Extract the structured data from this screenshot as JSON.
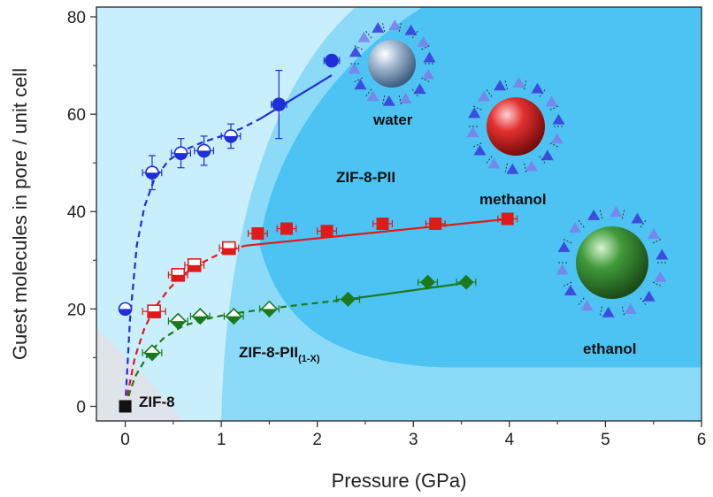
{
  "chart_data": {
    "type": "scatter",
    "title": "",
    "xlabel": "Pressure (GPa)",
    "ylabel": "Guest molecules in pore / unit cell",
    "xlim": [
      -0.3,
      6
    ],
    "ylim": [
      -3,
      82
    ],
    "x_ticks": [
      0,
      1,
      2,
      3,
      4,
      5,
      6
    ],
    "y_ticks": [
      0,
      20,
      40,
      60,
      80
    ],
    "x_tick_labels": [
      "0",
      "1",
      "2",
      "3",
      "4",
      "5",
      "6"
    ],
    "y_tick_labels": [
      "0",
      "20",
      "40",
      "60",
      "80"
    ],
    "grid": false,
    "regions": {
      "zif8": "ZIF-8",
      "pii_1x": "ZIF-8-PII",
      "pii_1x_sub": "(1-X)",
      "pii": "ZIF-8-PII"
    },
    "molecules": {
      "water": "water",
      "methanol": "methanol",
      "ethanol": "ethanol"
    },
    "colors": {
      "water": "#1f2fd8",
      "methanol": "#e01a1a",
      "ethanol": "#1b7a1b",
      "zif8": "#111111",
      "bg_light": "#c9eefc",
      "bg_mid": "#8bdaf8",
      "bg_dark": "#4cc3f2",
      "bg_corner": "#dfe3ea"
    },
    "series": [
      {
        "name": "water",
        "marker": "circle",
        "open_points": {
          "x": [
            0.0,
            0.28,
            0.58,
            0.82,
            1.1
          ],
          "y": [
            20,
            48,
            52,
            52.5,
            55.5
          ]
        },
        "filled_points": {
          "x": [
            1.6,
            2.15
          ],
          "y": [
            62,
            71
          ]
        },
        "error_y": [
          0,
          3.5,
          3,
          3,
          2.5,
          7,
          0
        ],
        "error_x": [
          0,
          0.1,
          0.1,
          0.1,
          0.1,
          0.08,
          0.08
        ],
        "fit_dashed": {
          "x": [
            0.0,
            0.05,
            0.12,
            0.2,
            0.3,
            0.45,
            0.6,
            0.8,
            1.0,
            1.2,
            1.4
          ],
          "y": [
            0,
            18,
            33,
            41,
            46.5,
            50.5,
            52.5,
            54.2,
            55.5,
            57,
            59
          ]
        },
        "fit_solid": {
          "x": [
            1.4,
            2.15
          ],
          "y": [
            59,
            68
          ]
        }
      },
      {
        "name": "methanol",
        "marker": "square",
        "open_points": {
          "x": [
            0.3,
            0.55,
            0.72,
            1.08
          ],
          "y": [
            19.5,
            27,
            29,
            32.5
          ]
        },
        "filled_points": {
          "x": [
            1.38,
            1.68,
            2.1,
            2.68,
            3.23,
            3.98
          ],
          "y": [
            35.5,
            36.5,
            36,
            37.5,
            37.5,
            38.5
          ]
        },
        "error_y": [
          0,
          0,
          0,
          0,
          0,
          0,
          0,
          0,
          0,
          0
        ],
        "error_x": [
          0.12,
          0.1,
          0.1,
          0.1,
          0.1,
          0.1,
          0.1,
          0.1,
          0.1,
          0.1
        ],
        "fit_dashed": {
          "x": [
            0.0,
            0.1,
            0.2,
            0.3,
            0.45,
            0.6,
            0.8,
            1.0,
            1.25
          ],
          "y": [
            0,
            10,
            16,
            20,
            24,
            27,
            29.5,
            31.5,
            33
          ]
        },
        "fit_solid": {
          "x": [
            1.25,
            4.0
          ],
          "y": [
            33,
            38.5
          ]
        }
      },
      {
        "name": "ethanol",
        "marker": "diamond",
        "open_points": {
          "x": [
            0.28,
            0.55,
            0.78,
            1.13,
            1.5
          ],
          "y": [
            11,
            17.5,
            18.5,
            18.5,
            20
          ]
        },
        "filled_points": {
          "x": [
            2.32,
            3.15,
            3.55
          ],
          "y": [
            22,
            25.5,
            25.5
          ]
        },
        "error_y": [
          0,
          0,
          0,
          0,
          0,
          0,
          0,
          0
        ],
        "error_x": [
          0.1,
          0.1,
          0.1,
          0.1,
          0.1,
          0.12,
          0.1,
          0.1
        ],
        "fit_dashed": {
          "x": [
            0.0,
            0.1,
            0.25,
            0.4,
            0.6,
            0.85,
            1.1,
            1.4,
            1.8,
            2.25
          ],
          "y": [
            0,
            6,
            11,
            14,
            16.5,
            18,
            19,
            19.8,
            20.8,
            21.8
          ]
        },
        "fit_solid": {
          "x": [
            2.25,
            3.6
          ],
          "y": [
            21.8,
            25.5
          ]
        }
      },
      {
        "name": "ZIF-8",
        "marker": "square",
        "open_points": {
          "x": [],
          "y": []
        },
        "filled_points": {
          "x": [
            0.0
          ],
          "y": [
            0
          ]
        },
        "error_y": [
          0
        ],
        "error_x": [
          0
        ]
      }
    ]
  }
}
